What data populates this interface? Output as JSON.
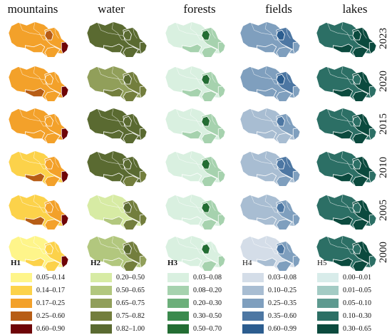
{
  "columns": [
    {
      "header": "mountains"
    },
    {
      "header": "water"
    },
    {
      "header": "forests"
    },
    {
      "header": "fields"
    },
    {
      "header": "lakes"
    }
  ],
  "years": [
    "2023",
    "2020",
    "2015",
    "2010",
    "2005",
    "2000"
  ],
  "legends": [
    {
      "title": "H1",
      "items": [
        {
          "label": "0.05–0.14",
          "color": "#fef58a"
        },
        {
          "label": "0.14–0.17",
          "color": "#fcd24a"
        },
        {
          "label": "0.17–0.25",
          "color": "#f3a12a"
        },
        {
          "label": "0.25–0.60",
          "color": "#b75d16"
        },
        {
          "label": "0.60–0.90",
          "color": "#6e0508"
        }
      ]
    },
    {
      "title": "H2",
      "items": [
        {
          "label": "0.20–0.50",
          "color": "#d7eba4"
        },
        {
          "label": "0.50–0.65",
          "color": "#b2c77e"
        },
        {
          "label": "0.65–0.75",
          "color": "#919f5a"
        },
        {
          "label": "0.75–0.82",
          "color": "#737e3d"
        },
        {
          "label": "0.82–1.00",
          "color": "#5a6a31"
        }
      ]
    },
    {
      "title": "H3",
      "items": [
        {
          "label": "0.03–0.08",
          "color": "#d9f0e0"
        },
        {
          "label": "0.08–0.20",
          "color": "#a6d2ae"
        },
        {
          "label": "0.20–0.30",
          "color": "#6caf7a"
        },
        {
          "label": "0.30–0.50",
          "color": "#3a8a4d"
        },
        {
          "label": "0.50–0.70",
          "color": "#236d33"
        }
      ]
    },
    {
      "title": "H4",
      "items": [
        {
          "label": "0.03–0.08",
          "color": "#d4dde8"
        },
        {
          "label": "0.10–0.25",
          "color": "#a8bdd2"
        },
        {
          "label": "0.25–0.35",
          "color": "#7f9fbe"
        },
        {
          "label": "0.35–0.60",
          "color": "#4d77a3"
        },
        {
          "label": "0.60–0.99",
          "color": "#2c5d8f"
        }
      ]
    },
    {
      "title": "H5",
      "items": [
        {
          "label": "0.00–0.01",
          "color": "#d8ecea"
        },
        {
          "label": "0.01–0.05",
          "color": "#a3cbc4"
        },
        {
          "label": "0.05–0.10",
          "color": "#5e9a90"
        },
        {
          "label": "0.10–0.30",
          "color": "#2c6f65"
        },
        {
          "label": "0.30–0.65",
          "color": "#0b4a3e"
        }
      ]
    }
  ],
  "maps": [
    [
      {
        "base": 2,
        "east": 2,
        "sw": 2,
        "se": 2,
        "nd": 3,
        "tip": 4
      },
      {
        "base": 4,
        "east": 4,
        "sw": 4,
        "se": 4,
        "nd": 4,
        "tip": 4
      },
      {
        "base": 0,
        "east": 1,
        "sw": 1,
        "se": 1,
        "nd": 4,
        "tip": 1
      },
      {
        "base": 2,
        "east": 3,
        "sw": 2,
        "se": 2,
        "nd": 4,
        "tip": 2
      },
      {
        "base": 3,
        "east": 4,
        "sw": 4,
        "se": 4,
        "nd": 4,
        "tip": 4
      }
    ],
    [
      {
        "base": 2,
        "east": 2,
        "sw": 3,
        "se": 2,
        "nd": 2,
        "tip": 4
      },
      {
        "base": 2,
        "east": 3,
        "sw": 3,
        "se": 3,
        "nd": 4,
        "tip": 3
      },
      {
        "base": 0,
        "east": 1,
        "sw": 1,
        "se": 1,
        "nd": 4,
        "tip": 1
      },
      {
        "base": 2,
        "east": 3,
        "sw": 2,
        "se": 2,
        "nd": 4,
        "tip": 2
      },
      {
        "base": 3,
        "east": 4,
        "sw": 4,
        "se": 4,
        "nd": 3,
        "tip": 3
      }
    ],
    [
      {
        "base": 2,
        "east": 2,
        "sw": 2,
        "se": 2,
        "nd": 2,
        "tip": 4
      },
      {
        "base": 4,
        "east": 4,
        "sw": 4,
        "se": 4,
        "nd": 4,
        "tip": 4
      },
      {
        "base": 0,
        "east": 1,
        "sw": 1,
        "se": 1,
        "nd": 4,
        "tip": 1
      },
      {
        "base": 1,
        "east": 2,
        "sw": 1,
        "se": 1,
        "nd": 3,
        "tip": 2
      },
      {
        "base": 3,
        "east": 4,
        "sw": 4,
        "se": 4,
        "nd": 3,
        "tip": 3
      }
    ],
    [
      {
        "base": 1,
        "east": 2,
        "sw": 3,
        "se": 2,
        "nd": 2,
        "tip": 4
      },
      {
        "base": 4,
        "east": 4,
        "sw": 4,
        "se": 3,
        "nd": 4,
        "tip": 3
      },
      {
        "base": 0,
        "east": 1,
        "sw": 0,
        "se": 1,
        "nd": 4,
        "tip": 1
      },
      {
        "base": 1,
        "east": 3,
        "sw": 1,
        "se": 2,
        "nd": 3,
        "tip": 2
      },
      {
        "base": 3,
        "east": 4,
        "sw": 4,
        "se": 4,
        "nd": 3,
        "tip": 3
      }
    ],
    [
      {
        "base": 1,
        "east": 2,
        "sw": 3,
        "se": 2,
        "nd": 2,
        "tip": 4
      },
      {
        "base": 0,
        "east": 3,
        "sw": 1,
        "se": 3,
        "nd": 4,
        "tip": 3
      },
      {
        "base": 0,
        "east": 1,
        "sw": 0,
        "se": 1,
        "nd": 4,
        "tip": 1
      },
      {
        "base": 1,
        "east": 2,
        "sw": 1,
        "se": 2,
        "nd": 3,
        "tip": 2
      },
      {
        "base": 3,
        "east": 4,
        "sw": 4,
        "se": 4,
        "nd": 3,
        "tip": 3
      }
    ],
    [
      {
        "base": 0,
        "east": 1,
        "sw": 1,
        "se": 1,
        "nd": 1,
        "tip": 4
      },
      {
        "base": 1,
        "east": 3,
        "sw": 1,
        "se": 3,
        "nd": 4,
        "tip": 2
      },
      {
        "base": 0,
        "east": 0,
        "sw": 0,
        "se": 1,
        "nd": 4,
        "tip": 1
      },
      {
        "base": 0,
        "east": 2,
        "sw": 1,
        "se": 2,
        "nd": 3,
        "tip": 2
      },
      {
        "base": 3,
        "east": 4,
        "sw": 4,
        "se": 4,
        "nd": 3,
        "tip": 3
      }
    ]
  ]
}
